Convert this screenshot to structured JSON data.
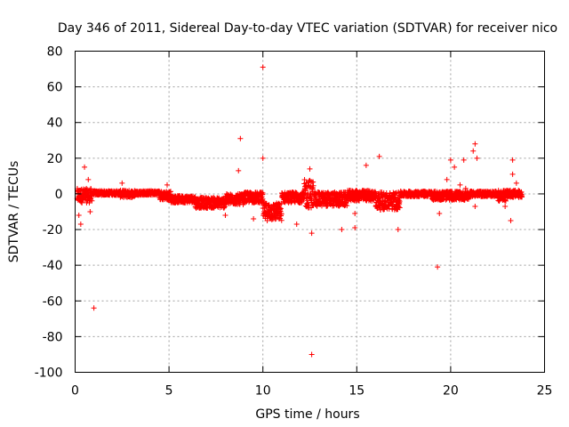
{
  "chart_data": {
    "type": "scatter",
    "title": "Day 346 of 2011, Sidereal Day-to-day VTEC variation (SDTVAR) for receiver nico",
    "xlabel": "GPS time / hours",
    "ylabel": "SDTVAR / TECUs",
    "xlim": [
      0,
      25
    ],
    "ylim": [
      -100,
      80
    ],
    "x_ticks": [
      0,
      5,
      10,
      15,
      20,
      25
    ],
    "y_ticks": [
      -100,
      -80,
      -60,
      -40,
      -20,
      0,
      20,
      40,
      60,
      80
    ],
    "grid": true,
    "marker": "+",
    "color": "#ff0000",
    "band_segments": [
      {
        "x_start": 0.1,
        "x_end": 0.9,
        "center": -1,
        "spread": 4
      },
      {
        "x_start": 0.9,
        "x_end": 2.4,
        "center": 0.5,
        "spread": 1.2
      },
      {
        "x_start": 2.4,
        "x_end": 3.2,
        "center": 0,
        "spread": 2
      },
      {
        "x_start": 3.2,
        "x_end": 4.5,
        "center": 0.5,
        "spread": 1.2
      },
      {
        "x_start": 4.5,
        "x_end": 5.1,
        "center": -1,
        "spread": 2.5
      },
      {
        "x_start": 5.1,
        "x_end": 6.4,
        "center": -3,
        "spread": 2
      },
      {
        "x_start": 6.4,
        "x_end": 8.0,
        "center": -5,
        "spread": 3
      },
      {
        "x_start": 8.0,
        "x_end": 9.0,
        "center": -3,
        "spread": 3
      },
      {
        "x_start": 9.0,
        "x_end": 10.0,
        "center": -2,
        "spread": 3
      },
      {
        "x_start": 10.0,
        "x_end": 11.0,
        "center": -10,
        "spread": 5
      },
      {
        "x_start": 11.0,
        "x_end": 12.2,
        "center": -2,
        "spread": 3
      },
      {
        "x_start": 12.2,
        "x_end": 12.7,
        "center": 0,
        "spread": 8
      },
      {
        "x_start": 12.7,
        "x_end": 14.5,
        "center": -3,
        "spread": 4
      },
      {
        "x_start": 14.5,
        "x_end": 16.0,
        "center": -1,
        "spread": 3
      },
      {
        "x_start": 16.0,
        "x_end": 17.3,
        "center": -4,
        "spread": 5
      },
      {
        "x_start": 17.3,
        "x_end": 19.0,
        "center": 0,
        "spread": 1.5
      },
      {
        "x_start": 19.0,
        "x_end": 21.0,
        "center": -1,
        "spread": 2.5
      },
      {
        "x_start": 21.0,
        "x_end": 22.5,
        "center": 0,
        "spread": 1.5
      },
      {
        "x_start": 22.5,
        "x_end": 23.0,
        "center": -1,
        "spread": 3
      },
      {
        "x_start": 23.0,
        "x_end": 23.8,
        "center": 0,
        "spread": 2
      }
    ],
    "outliers": [
      {
        "x": 1.0,
        "y": -64
      },
      {
        "x": 0.5,
        "y": 15
      },
      {
        "x": 0.7,
        "y": 8
      },
      {
        "x": 0.3,
        "y": -17
      },
      {
        "x": 0.2,
        "y": -12
      },
      {
        "x": 0.8,
        "y": -10
      },
      {
        "x": 2.5,
        "y": 6
      },
      {
        "x": 4.9,
        "y": 5
      },
      {
        "x": 8.0,
        "y": -12
      },
      {
        "x": 8.8,
        "y": 31
      },
      {
        "x": 8.7,
        "y": 13
      },
      {
        "x": 10.0,
        "y": 71
      },
      {
        "x": 10.0,
        "y": 20
      },
      {
        "x": 9.5,
        "y": -14
      },
      {
        "x": 11.8,
        "y": -17
      },
      {
        "x": 12.5,
        "y": 14
      },
      {
        "x": 12.6,
        "y": -22
      },
      {
        "x": 12.6,
        "y": -90
      },
      {
        "x": 14.2,
        "y": -20
      },
      {
        "x": 14.9,
        "y": -11
      },
      {
        "x": 14.9,
        "y": -19
      },
      {
        "x": 15.5,
        "y": 16
      },
      {
        "x": 16.2,
        "y": 21
      },
      {
        "x": 17.2,
        "y": -20
      },
      {
        "x": 19.3,
        "y": -41
      },
      {
        "x": 19.4,
        "y": -11
      },
      {
        "x": 19.8,
        "y": 8
      },
      {
        "x": 20.0,
        "y": 19
      },
      {
        "x": 20.2,
        "y": 15
      },
      {
        "x": 20.5,
        "y": 5
      },
      {
        "x": 20.7,
        "y": 19
      },
      {
        "x": 21.2,
        "y": 24
      },
      {
        "x": 21.3,
        "y": 28
      },
      {
        "x": 21.4,
        "y": 20
      },
      {
        "x": 21.3,
        "y": -7
      },
      {
        "x": 20.8,
        "y": 3
      },
      {
        "x": 23.3,
        "y": 19
      },
      {
        "x": 23.3,
        "y": 11
      },
      {
        "x": 23.2,
        "y": -15
      },
      {
        "x": 22.9,
        "y": -7
      },
      {
        "x": 23.5,
        "y": 6
      }
    ]
  }
}
